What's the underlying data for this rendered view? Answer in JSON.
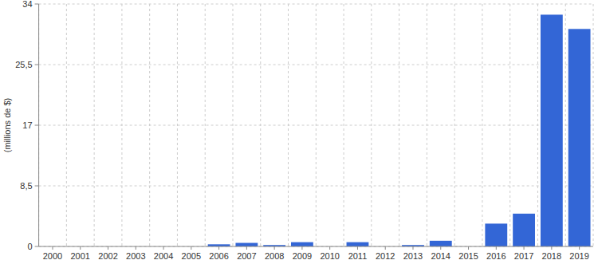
{
  "chart_data": {
    "type": "bar",
    "y_label": "(millions de $)",
    "categories": [
      "2000",
      "2001",
      "2002",
      "2003",
      "2004",
      "2005",
      "2006",
      "2007",
      "2008",
      "2009",
      "2010",
      "2011",
      "2012",
      "2013",
      "2014",
      "2015",
      "2016",
      "2017",
      "2018",
      "2019"
    ],
    "values": [
      0,
      0,
      0,
      0,
      0,
      0,
      0.3,
      0.5,
      0.2,
      0.6,
      0,
      0.6,
      0,
      0.2,
      0.8,
      0,
      3.2,
      4.6,
      32.5,
      30.5
    ],
    "color": "#3366d6",
    "ylim": [
      0,
      34
    ],
    "yticks": [
      0,
      {
        "value": 8.5,
        "label": "8,5"
      },
      17,
      {
        "value": 25.5,
        "label": "25,5"
      },
      34
    ],
    "grid": true
  }
}
